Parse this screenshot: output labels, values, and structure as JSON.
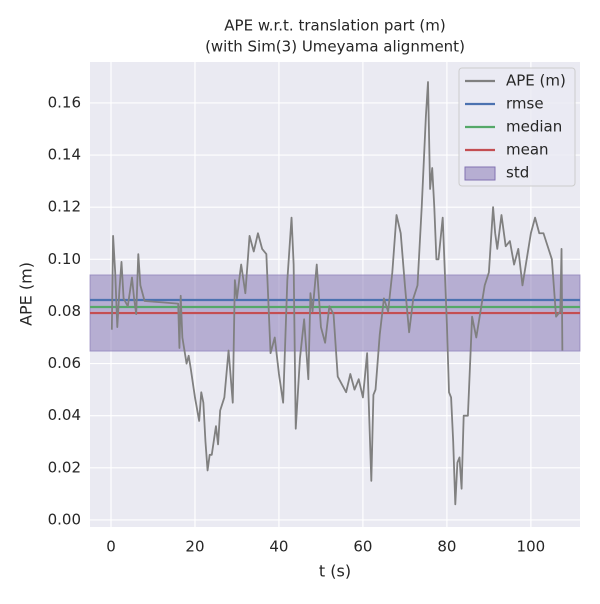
{
  "chart_data": {
    "type": "line",
    "title": "APE w.r.t. translation part (m)",
    "subtitle": "(with Sim(3) Umeyama alignment)",
    "x_label": "t (s)",
    "y_label": "APE (m)",
    "xlim": [
      -5,
      111.7
    ],
    "ylim": [
      -0.0027,
      0.1757
    ],
    "xticks": [
      0,
      20,
      40,
      60,
      80,
      100
    ],
    "yticks": [
      {
        "value": 0,
        "label": "0.00"
      },
      {
        "value": 0.02,
        "label": "0.02"
      },
      {
        "value": 0.04,
        "label": "0.04"
      },
      {
        "value": 0.06,
        "label": "0.06"
      },
      {
        "value": 0.08,
        "label": "0.08"
      },
      {
        "value": 0.1,
        "label": "0.10"
      },
      {
        "value": 0.12,
        "label": "0.12"
      },
      {
        "value": 0.14,
        "label": "0.14"
      },
      {
        "value": 0.16,
        "label": "0.16"
      }
    ],
    "grid": true,
    "legend": "upper right",
    "series": [
      {
        "name": "APE (m)",
        "color": "#808080",
        "x": [
          0.2,
          0.5,
          1,
          1.5,
          2,
          2.5,
          3,
          4,
          5,
          5.5,
          6,
          6.5,
          7,
          8,
          16,
          16.3,
          16.6,
          17,
          18,
          18.5,
          19,
          20,
          21,
          21.5,
          22,
          22.5,
          23,
          23.5,
          24,
          25,
          25.5,
          26,
          27,
          28,
          29,
          29.5,
          30,
          31,
          32,
          33,
          34,
          35,
          36,
          37,
          38,
          39,
          40,
          41,
          42,
          43,
          43.5,
          44,
          45,
          46,
          47,
          47.5,
          48,
          49,
          50,
          51,
          52,
          53,
          54,
          55,
          56,
          57,
          58,
          59,
          60,
          61,
          62,
          62.5,
          63,
          64,
          65,
          66,
          67,
          68,
          69,
          70,
          71,
          72,
          73,
          74,
          75,
          75.5,
          76,
          76.5,
          77,
          77.5,
          78,
          79,
          80,
          80.5,
          81,
          81.5,
          82,
          82.5,
          83,
          83.5,
          84,
          85,
          86,
          87,
          88,
          89,
          90,
          91,
          91.5,
          92,
          93,
          94,
          95,
          96,
          97,
          98,
          99,
          100,
          101,
          102,
          103,
          104,
          105,
          106,
          107,
          107.3,
          107.5
        ],
        "values": [
          0.073,
          0.109,
          0.095,
          0.074,
          0.088,
          0.099,
          0.085,
          0.082,
          0.093,
          0.085,
          0.079,
          0.102,
          0.09,
          0.084,
          0.083,
          0.066,
          0.086,
          0.07,
          0.06,
          0.063,
          0.058,
          0.047,
          0.038,
          0.049,
          0.045,
          0.03,
          0.019,
          0.025,
          0.025,
          0.036,
          0.029,
          0.042,
          0.047,
          0.065,
          0.045,
          0.092,
          0.085,
          0.098,
          0.087,
          0.109,
          0.103,
          0.11,
          0.104,
          0.102,
          0.064,
          0.07,
          0.056,
          0.045,
          0.092,
          0.116,
          0.098,
          0.035,
          0.062,
          0.077,
          0.054,
          0.087,
          0.08,
          0.098,
          0.074,
          0.068,
          0.082,
          0.079,
          0.055,
          0.052,
          0.049,
          0.056,
          0.05,
          0.054,
          0.047,
          0.064,
          0.015,
          0.048,
          0.05,
          0.071,
          0.085,
          0.08,
          0.095,
          0.117,
          0.11,
          0.09,
          0.072,
          0.085,
          0.09,
          0.12,
          0.155,
          0.168,
          0.127,
          0.135,
          0.12,
          0.1,
          0.1,
          0.116,
          0.075,
          0.049,
          0.047,
          0.03,
          0.006,
          0.022,
          0.024,
          0.012,
          0.04,
          0.04,
          0.078,
          0.07,
          0.08,
          0.09,
          0.095,
          0.12,
          0.11,
          0.104,
          0.117,
          0.105,
          0.107,
          0.098,
          0.104,
          0.09,
          0.1,
          0.11,
          0.116,
          0.11,
          0.11,
          0.105,
          0.1,
          0.078,
          0.08,
          0.104,
          0.065
        ]
      }
    ],
    "stats": [
      {
        "name": "rmse",
        "color": "#4c72b0",
        "value": 0.0844
      },
      {
        "name": "median",
        "color": "#55a868",
        "value": 0.0817
      },
      {
        "name": "mean",
        "color": "#c44e52",
        "value": 0.0794
      }
    ],
    "std": {
      "name": "std",
      "color": "#8172b2",
      "value": 0.0146
    }
  }
}
